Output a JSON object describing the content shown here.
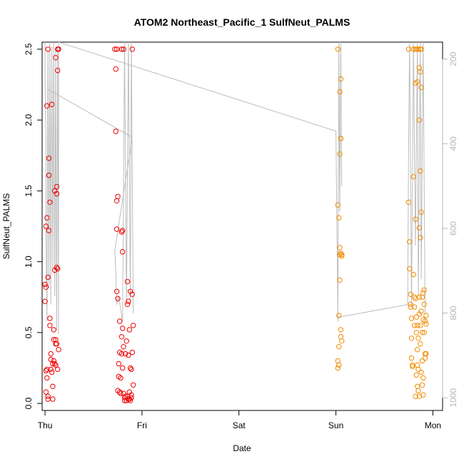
{
  "chart_data": {
    "type": "scatter",
    "title": "ATOM2 Northeast_Pacific_1 SulfNeut_PALMS",
    "xlabel": "Date",
    "ylabel": "SulfNeut_PALMS",
    "x_ticks": [
      {
        "label": "Thu",
        "day": 0
      },
      {
        "label": "Fri",
        "day": 1
      },
      {
        "label": "Sat",
        "day": 2
      },
      {
        "label": "Sun",
        "day": 3
      },
      {
        "label": "Mon",
        "day": 4
      }
    ],
    "xlim": [
      -0.03,
      4.1
    ],
    "ylim": [
      -0.05,
      2.55
    ],
    "y_ticks": [
      "0.0",
      "0.5",
      "1.0",
      "1.5",
      "2.0",
      "2.5"
    ],
    "y2_label": "",
    "y2_ticks": [
      "200",
      "400",
      "600",
      "800",
      "1000"
    ],
    "y2lim": [
      1030,
      160
    ],
    "colors": {
      "red": "#ee0000",
      "orange": "#f28c00",
      "trace": "#bdbdbd",
      "right_axis": "#b5b5b5"
    },
    "series": [
      {
        "name": "flight-1",
        "color": "#ee0000",
        "points": [
          [
            0.0,
            0.72
          ],
          [
            0.0,
            0.84
          ],
          [
            0.01,
            0.82
          ],
          [
            0.01,
            1.25
          ],
          [
            0.02,
            1.31
          ],
          [
            0.02,
            0.24
          ],
          [
            0.01,
            0.23
          ],
          [
            0.02,
            0.18
          ],
          [
            0.01,
            0.08
          ],
          [
            0.03,
            0.05
          ],
          [
            0.02,
            2.1
          ],
          [
            0.03,
            2.5
          ],
          [
            0.03,
            0.89
          ],
          [
            0.04,
            1.73
          ],
          [
            0.04,
            1.61
          ],
          [
            0.05,
            1.42
          ],
          [
            0.04,
            1.22
          ],
          [
            0.05,
            0.6
          ],
          [
            0.05,
            0.55
          ],
          [
            0.06,
            0.35
          ],
          [
            0.06,
            0.31
          ],
          [
            0.06,
            0.24
          ],
          [
            0.07,
            2.11
          ],
          [
            0.07,
            0.22
          ],
          [
            0.08,
            0.12
          ],
          [
            0.08,
            0.03
          ],
          [
            0.09,
            0.52
          ],
          [
            0.09,
            0.45
          ],
          [
            0.09,
            0.3
          ],
          [
            0.1,
            1.5
          ],
          [
            0.1,
            0.94
          ],
          [
            0.1,
            0.28
          ],
          [
            0.11,
            2.44
          ],
          [
            0.11,
            0.45
          ],
          [
            0.11,
            0.27
          ],
          [
            0.12,
            1.53
          ],
          [
            0.12,
            1.48
          ],
          [
            0.12,
            0.96
          ],
          [
            0.12,
            0.42
          ],
          [
            0.13,
            2.5
          ],
          [
            0.13,
            2.35
          ],
          [
            0.13,
            0.95
          ],
          [
            0.13,
            0.24
          ],
          [
            0.14,
            2.5
          ],
          [
            0.14,
            0.38
          ],
          [
            0.03,
            0.03
          ],
          [
            0.08,
            0.28
          ],
          [
            0.11,
            0.42
          ],
          [
            0.72,
            2.5
          ],
          [
            0.73,
            2.36
          ],
          [
            0.73,
            1.92
          ],
          [
            0.74,
            2.5
          ],
          [
            0.74,
            1.43
          ],
          [
            0.74,
            1.23
          ],
          [
            0.74,
            0.79
          ],
          [
            0.75,
            0.74
          ],
          [
            0.75,
            1.46
          ],
          [
            0.75,
            0.09
          ],
          [
            0.76,
            0.28
          ],
          [
            0.76,
            0.19
          ],
          [
            0.77,
            0.58
          ],
          [
            0.77,
            0.36
          ],
          [
            0.77,
            0.08
          ],
          [
            0.78,
            0.18
          ],
          [
            0.78,
            0.07
          ],
          [
            0.79,
            2.5
          ],
          [
            0.79,
            1.21
          ],
          [
            0.79,
            0.47
          ],
          [
            0.79,
            0.35
          ],
          [
            0.8,
            1.22
          ],
          [
            0.8,
            1.07
          ],
          [
            0.8,
            0.53
          ],
          [
            0.8,
            0.25
          ],
          [
            0.81,
            2.5
          ],
          [
            0.81,
            0.4
          ],
          [
            0.81,
            0.07
          ],
          [
            0.82,
            0.04
          ],
          [
            0.82,
            0.02
          ],
          [
            0.83,
            0.05
          ],
          [
            0.83,
            0.35
          ],
          [
            0.84,
            0.02
          ],
          [
            0.84,
            0.44
          ],
          [
            0.85,
            0.86
          ],
          [
            0.85,
            0.7
          ],
          [
            0.85,
            0.05
          ],
          [
            0.86,
            0.03
          ],
          [
            0.86,
            0.34
          ],
          [
            0.87,
            0.03
          ],
          [
            0.87,
            0.08
          ],
          [
            0.87,
            0.52
          ],
          [
            0.88,
            0.79
          ],
          [
            0.88,
            0.25
          ],
          [
            0.88,
            0.02
          ],
          [
            0.89,
            0.06
          ],
          [
            0.89,
            0.04
          ],
          [
            0.89,
            0.24
          ],
          [
            0.9,
            2.5
          ],
          [
            0.9,
            0.77
          ],
          [
            0.9,
            0.36
          ],
          [
            0.91,
            0.55
          ],
          [
            0.91,
            0.13
          ],
          [
            0.86,
            0.72
          ]
        ]
      },
      {
        "name": "flight-2",
        "color": "#f28c00",
        "points": [
          [
            3.02,
            2.5
          ],
          [
            3.02,
            1.4
          ],
          [
            3.03,
            1.31
          ],
          [
            3.03,
            0.62
          ],
          [
            3.03,
            0.4
          ],
          [
            3.02,
            0.3
          ],
          [
            3.02,
            0.25
          ],
          [
            3.03,
            0.27
          ],
          [
            3.04,
            2.2
          ],
          [
            3.04,
            1.76
          ],
          [
            3.04,
            1.1
          ],
          [
            3.04,
            1.05
          ],
          [
            3.04,
            0.87
          ],
          [
            3.05,
            2.29
          ],
          [
            3.05,
            1.87
          ],
          [
            3.05,
            1.06
          ],
          [
            3.05,
            0.52
          ],
          [
            3.06,
            1.04
          ],
          [
            3.06,
            0.44
          ],
          [
            3.05,
            0.47
          ],
          [
            3.06,
            1.05
          ],
          [
            3.05,
            1.87
          ],
          [
            3.75,
            2.5
          ],
          [
            3.75,
            1.42
          ],
          [
            3.76,
            1.14
          ],
          [
            3.76,
            0.95
          ],
          [
            3.77,
            0.77
          ],
          [
            3.77,
            0.7
          ],
          [
            3.77,
            0.68
          ],
          [
            3.78,
            0.6
          ],
          [
            3.78,
            0.46
          ],
          [
            3.78,
            0.32
          ],
          [
            3.79,
            0.27
          ],
          [
            3.79,
            0.26
          ],
          [
            3.8,
            2.5
          ],
          [
            3.8,
            1.6
          ],
          [
            3.8,
            0.91
          ],
          [
            3.81,
            0.75
          ],
          [
            3.81,
            0.68
          ],
          [
            3.81,
            0.55
          ],
          [
            3.82,
            2.5
          ],
          [
            3.82,
            2.26
          ],
          [
            3.82,
            1.3
          ],
          [
            3.82,
            0.74
          ],
          [
            3.83,
            2.5
          ],
          [
            3.83,
            0.61
          ],
          [
            3.83,
            0.5
          ],
          [
            3.83,
            0.2
          ],
          [
            3.84,
            2.27
          ],
          [
            3.84,
            0.55
          ],
          [
            3.84,
            0.38
          ],
          [
            3.84,
            0.12
          ],
          [
            3.85,
            2.5
          ],
          [
            3.85,
            0.24
          ],
          [
            3.85,
            0.09
          ],
          [
            3.86,
            2.37
          ],
          [
            3.86,
            2.0
          ],
          [
            3.86,
            1.24
          ],
          [
            3.86,
            0.63
          ],
          [
            3.86,
            0.05
          ],
          [
            3.87,
            2.5
          ],
          [
            3.87,
            2.34
          ],
          [
            3.87,
            1.64
          ],
          [
            3.87,
            1.17
          ],
          [
            3.87,
            0.55
          ],
          [
            3.87,
            0.42
          ],
          [
            3.88,
            2.5
          ],
          [
            3.88,
            2.23
          ],
          [
            3.88,
            1.35
          ],
          [
            3.88,
            0.65
          ],
          [
            3.88,
            0.22
          ],
          [
            3.89,
            0.75
          ],
          [
            3.89,
            0.5
          ],
          [
            3.89,
            0.3
          ],
          [
            3.9,
            0.18
          ],
          [
            3.9,
            0.06
          ],
          [
            3.9,
            0.78
          ],
          [
            3.9,
            0.59
          ],
          [
            3.91,
            0.8
          ],
          [
            3.91,
            0.7
          ],
          [
            3.91,
            0.5
          ],
          [
            3.92,
            0.58
          ],
          [
            3.92,
            0.35
          ],
          [
            3.92,
            0.32
          ],
          [
            3.93,
            0.62
          ],
          [
            3.93,
            0.56
          ],
          [
            3.93,
            0.35
          ],
          [
            3.89,
            0.13
          ],
          [
            3.86,
            0.75
          ],
          [
            3.84,
            0.27
          ],
          [
            3.82,
            0.05
          ],
          [
            3.85,
            0.46
          ]
        ]
      }
    ],
    "traces": [
      {
        "name": "altitude-trace-1",
        "depths": [
          [
            0.0,
            160
          ],
          [
            0.0,
            240
          ],
          [
            0.01,
            400
          ],
          [
            0.01,
            600
          ],
          [
            0.02,
            820
          ],
          [
            0.03,
            180
          ],
          [
            0.04,
            740
          ],
          [
            0.05,
            160
          ],
          [
            0.06,
            780
          ],
          [
            0.07,
            170
          ],
          [
            0.08,
            700
          ],
          [
            0.09,
            160
          ],
          [
            0.1,
            760
          ],
          [
            0.11,
            180
          ],
          [
            0.12,
            840
          ],
          [
            0.13,
            170
          ],
          [
            0.14,
            850
          ],
          [
            0.14,
            160
          ]
        ]
      },
      {
        "name": "altitude-trace-2",
        "depths": [
          [
            0.02,
            270
          ],
          [
            0.9,
            385
          ],
          [
            0.72,
            650
          ],
          [
            0.73,
            700
          ],
          [
            0.74,
            780
          ],
          [
            0.76,
            760
          ],
          [
            0.8,
            820
          ],
          [
            0.82,
            160
          ],
          [
            0.84,
            780
          ],
          [
            0.86,
            160
          ],
          [
            0.88,
            780
          ],
          [
            0.89,
            160
          ],
          [
            0.91,
            800
          ]
        ]
      },
      {
        "name": "altitude-trace-3",
        "depths": [
          [
            0.14,
            160
          ],
          [
            3.0,
            370
          ],
          [
            3.02,
            820
          ],
          [
            3.03,
            160
          ],
          [
            3.04,
            560
          ],
          [
            3.05,
            160
          ],
          [
            3.06,
            500
          ]
        ]
      },
      {
        "name": "altitude-trace-4",
        "depths": [
          [
            3.02,
            810
          ],
          [
            3.74,
            780
          ],
          [
            3.75,
            380
          ],
          [
            3.76,
            160
          ],
          [
            3.78,
            780
          ],
          [
            3.8,
            160
          ],
          [
            3.82,
            640
          ],
          [
            3.84,
            160
          ],
          [
            3.85,
            760
          ],
          [
            3.87,
            160
          ],
          [
            3.88,
            720
          ],
          [
            3.9,
            160
          ],
          [
            3.92,
            800
          ]
        ]
      }
    ]
  }
}
